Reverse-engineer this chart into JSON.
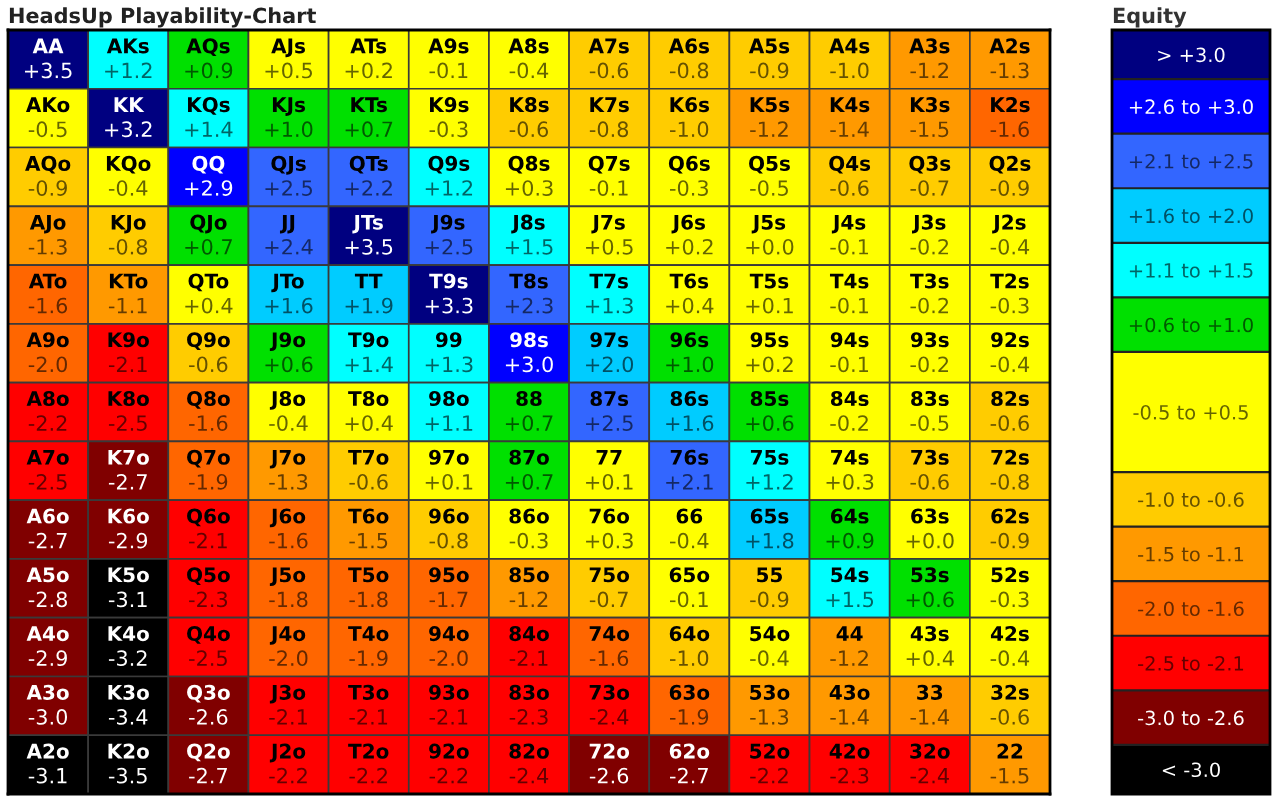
{
  "chart_data": {
    "type": "heatmap",
    "title": "HeadsUp Playability-Chart",
    "clabel": "Equity",
    "categories": [
      null,
      null,
      null,
      null,
      null,
      null,
      null,
      null,
      null,
      null,
      null,
      null,
      null
    ],
    "y_categories": [
      null,
      null,
      null,
      null,
      null,
      null,
      null,
      null,
      null,
      null,
      null,
      null,
      null
    ],
    "cells": [
      [
        3.5,
        1.2,
        0.9,
        0.5,
        0.2,
        -0.1,
        -0.4,
        -0.6,
        -0.8,
        -0.9,
        -1.0,
        -1.2,
        -1.3
      ],
      [
        -0.5,
        3.2,
        1.4,
        1.0,
        0.7,
        -0.3,
        -0.6,
        -0.8,
        -1.0,
        -1.2,
        -1.4,
        -1.5,
        -1.6
      ],
      [
        -0.9,
        -0.4,
        2.9,
        2.5,
        2.2,
        1.2,
        0.3,
        -0.1,
        -0.3,
        -0.5,
        -0.6,
        -0.7,
        -0.9
      ],
      [
        -1.3,
        -0.8,
        0.7,
        2.4,
        3.5,
        2.5,
        1.5,
        0.5,
        0.2,
        0.0,
        -0.1,
        -0.2,
        -0.4
      ],
      [
        -1.6,
        -1.1,
        0.4,
        1.6,
        1.9,
        3.3,
        2.3,
        1.3,
        0.4,
        0.1,
        -0.1,
        -0.2,
        -0.3
      ],
      [
        -2.0,
        -2.1,
        -0.6,
        0.6,
        1.4,
        1.3,
        3.0,
        2.0,
        1.0,
        0.2,
        -0.1,
        -0.2,
        -0.4
      ],
      [
        -2.2,
        -2.5,
        -1.6,
        -0.4,
        0.4,
        1.1,
        0.7,
        2.5,
        1.6,
        0.6,
        -0.2,
        -0.5,
        -0.6
      ],
      [
        -2.5,
        -2.7,
        -1.9,
        -1.3,
        -0.6,
        0.1,
        0.7,
        0.1,
        2.1,
        1.2,
        0.3,
        -0.6,
        -0.8
      ],
      [
        -2.7,
        -2.9,
        -2.1,
        -1.6,
        -1.5,
        -0.8,
        -0.3,
        0.3,
        -0.4,
        1.8,
        0.9,
        0.0,
        -0.9
      ],
      [
        -2.8,
        -3.1,
        -2.3,
        -1.8,
        -1.8,
        -1.7,
        -1.2,
        -0.7,
        -0.1,
        -0.9,
        1.5,
        0.6,
        -0.3
      ],
      [
        -2.9,
        -3.2,
        -2.5,
        -2.0,
        -1.9,
        -2.0,
        -2.1,
        -1.6,
        -1.0,
        -0.4,
        -1.2,
        0.4,
        -0.4
      ],
      [
        -3.0,
        -3.4,
        -2.6,
        -2.1,
        -2.1,
        -2.1,
        -2.3,
        -2.4,
        -1.9,
        -1.3,
        -1.4,
        -1.4,
        -0.6
      ],
      [
        -3.1,
        -3.5,
        -2.7,
        -2.2,
        -2.2,
        -2.2,
        -2.4,
        -2.6,
        -2.7,
        -2.2,
        -2.3,
        -2.4,
        -1.5
      ]
    ],
    "cell_labels": [
      [
        "+3.5",
        "+1.2",
        "+0.9",
        "+0.5",
        "+0.2",
        "-0.1",
        "-0.4",
        "-0.6",
        "-0.8",
        "-0.9",
        "-1.0",
        "-1.2",
        "-1.3"
      ],
      [
        "-0.5",
        "+3.2",
        "+1.4",
        "+1.0",
        "+0.7",
        "-0.3",
        "-0.6",
        "-0.8",
        "-1.0",
        "-1.2",
        "-1.4",
        "-1.5",
        "-1.6"
      ],
      [
        "-0.9",
        "-0.4",
        "+2.9",
        "+2.5",
        "+2.2",
        "+1.2",
        "+0.3",
        "-0.1",
        "-0.3",
        "-0.5",
        "-0.6",
        "-0.7",
        "-0.9"
      ],
      [
        "-1.3",
        "-0.8",
        "+0.7",
        "+2.4",
        "+3.5",
        "+2.5",
        "+1.5",
        "+0.5",
        "+0.2",
        "+0.0",
        "-0.1",
        "-0.2",
        "-0.4"
      ],
      [
        "-1.6",
        "-1.1",
        "+0.4",
        "+1.6",
        "+1.9",
        "+3.3",
        "+2.3",
        "+1.3",
        "+0.4",
        "+0.1",
        "-0.1",
        "-0.2",
        "-0.3"
      ],
      [
        "-2.0",
        "-2.1",
        "-0.6",
        "+0.6",
        "+1.4",
        "+1.3",
        "+3.0",
        "+2.0",
        "+1.0",
        "+0.2",
        "-0.1",
        "-0.2",
        "-0.4"
      ],
      [
        "-2.2",
        "-2.5",
        "-1.6",
        "-0.4",
        "+0.4",
        "+1.1",
        "+0.7",
        "+2.5",
        "+1.6",
        "+0.6",
        "-0.2",
        "-0.5",
        "-0.6"
      ],
      [
        "-2.5",
        "-2.7",
        "-1.9",
        "-1.3",
        "-0.6",
        "+0.1",
        "+0.7",
        "+0.1",
        "+2.1",
        "+1.2",
        "+0.3",
        "-0.6",
        "-0.8"
      ],
      [
        "-2.7",
        "-2.9",
        "-2.1",
        "-1.6",
        "-1.5",
        "-0.8",
        "-0.3",
        "+0.3",
        "-0.4",
        "+1.8",
        "+0.9",
        "+0.0",
        "-0.9"
      ],
      [
        "-2.8",
        "-3.1",
        "-2.3",
        "-1.8",
        "-1.8",
        "-1.7",
        "-1.2",
        "-0.7",
        "-0.1",
        "-0.9",
        "+1.5",
        "+0.6",
        "-0.3"
      ],
      [
        "-2.9",
        "-3.2",
        "-2.5",
        "-2.0",
        "-1.9",
        "-2.0",
        "-2.1",
        "-1.6",
        "-1.0",
        "-0.4",
        "-1.2",
        "+0.4",
        "-0.4"
      ],
      [
        "-3.0",
        "-3.4",
        "-2.6",
        "-2.1",
        "-2.1",
        "-2.1",
        "-2.3",
        "-2.4",
        "-1.9",
        "-1.3",
        "-1.4",
        "-1.4",
        "-0.6"
      ],
      [
        "-3.1",
        "-3.5",
        "-2.7",
        "-2.2",
        "-2.2",
        "-2.2",
        "-2.4",
        "-2.6",
        "-2.7",
        "-2.2",
        "-2.3",
        "-2.4",
        "-1.5"
      ]
    ],
    "annotations": [
      "AA",
      "AKs",
      "AQs",
      "AJs",
      "ATs",
      "A9s",
      "A8s",
      "A7s",
      "A6s",
      "A5s",
      "A4s",
      "A3s",
      "A2s",
      "AKo",
      "KK",
      "KQs",
      "KJs",
      "KTs",
      "K9s",
      "K8s",
      "K7s",
      "K6s",
      "K5s",
      "K4s",
      "K3s",
      "K2s",
      "AQo",
      "KQo",
      "QQ",
      "QJs",
      "QTs",
      "Q9s",
      "Q8s",
      "Q7s",
      "Q6s",
      "Q5s",
      "Q4s",
      "Q3s",
      "Q2s",
      "AJo",
      "KJo",
      "QJo",
      "JJ",
      "JTs",
      "J9s",
      "J8s",
      "J7s",
      "J6s",
      "J5s",
      "J4s",
      "J3s",
      "J2s",
      "ATo",
      "KTo",
      "QTo",
      "JTo",
      "TT",
      "T9s",
      "T8s",
      "T7s",
      "T6s",
      "T5s",
      "T4s",
      "T3s",
      "T2s",
      "A9o",
      "K9o",
      "Q9o",
      "J9o",
      "T9o",
      "99",
      "98s",
      "97s",
      "96s",
      "95s",
      "94s",
      "93s",
      "92s",
      "A8o",
      "K8o",
      "Q8o",
      "J8o",
      "T8o",
      "98o",
      "88",
      "87s",
      "86s",
      "85s",
      "84s",
      "83s",
      "82s",
      "A7o",
      "K7o",
      "Q7o",
      "J7o",
      "T7o",
      "97o",
      "87o",
      "77",
      "76s",
      "75s",
      "74s",
      "73s",
      "72s",
      "A6o",
      "K6o",
      "Q6o",
      "J6o",
      "T6o",
      "96o",
      "86o",
      "76o",
      "66",
      "65s",
      "64s",
      "63s",
      "62s",
      "A5o",
      "K5o",
      "Q5o",
      "J5o",
      "T5o",
      "95o",
      "85o",
      "75o",
      "65o",
      "55",
      "54s",
      "53s",
      "52s",
      "A4o",
      "K4o",
      "Q4o",
      "J4o",
      "T4o",
      "94o",
      "84o",
      "74o",
      "64o",
      "54o",
      "44",
      "43s",
      "42s",
      "A3o",
      "K3o",
      "Q3o",
      "J3o",
      "T3o",
      "93o",
      "83o",
      "73o",
      "63o",
      "53o",
      "43o",
      "33",
      "32s",
      "A2o",
      "K2o",
      "Q2o",
      "J2o",
      "T2o",
      "92o",
      "82o",
      "72o",
      "62o",
      "52o",
      "42o",
      "32o",
      "22"
    ],
    "clim": [
      -3.5,
      3.5
    ],
    "cticks": [
      {
        "value": -3.275,
        "label": "< -3.0"
      },
      {
        "value": -3.05,
        "label": null
      },
      {
        "value": -2.8,
        "label": "-3.0 to -2.6"
      },
      {
        "value": -2.55,
        "label": null
      },
      {
        "value": -2.3,
        "label": "-2.5 to -2.1"
      },
      {
        "value": -2.05,
        "label": null
      },
      {
        "value": -1.8,
        "label": "-2.0 to -1.6"
      },
      {
        "value": -1.55,
        "label": null
      },
      {
        "value": -1.3,
        "label": "-1.5 to -1.1"
      },
      {
        "value": -1.05,
        "label": null
      },
      {
        "value": -0.8,
        "label": "-1.0 to -0.6"
      },
      {
        "value": -0.55,
        "label": null
      },
      {
        "value": 0,
        "label": "-0.5 to +0.5"
      },
      {
        "value": 0.55,
        "label": null
      },
      {
        "value": 0.8,
        "label": "+0.6 to +1.0"
      },
      {
        "value": 1.05,
        "label": null
      },
      {
        "value": 1.3,
        "label": "+1.1 to +1.5"
      },
      {
        "value": 1.55,
        "label": null
      },
      {
        "value": 1.8,
        "label": "+1.6 to +2.0"
      },
      {
        "value": 2.05,
        "label": null
      },
      {
        "value": 2.3,
        "label": "+2.1 to +2.5"
      },
      {
        "value": 2.55,
        "label": null
      },
      {
        "value": 2.8,
        "label": "+2.6 to +3.0"
      },
      {
        "value": 3.05,
        "label": null
      },
      {
        "value": 3.275,
        "label": "> +3.0"
      }
    ],
    "colors": [
      "#000000",
      "#800000",
      "#ff0000",
      "#ff6600",
      "#ff9900",
      "#ffcc00",
      "#ffff00",
      "#00e000",
      "#00ffff",
      "#00ccff",
      "#3366ff",
      "#0000ff",
      "#000080"
    ]
  }
}
